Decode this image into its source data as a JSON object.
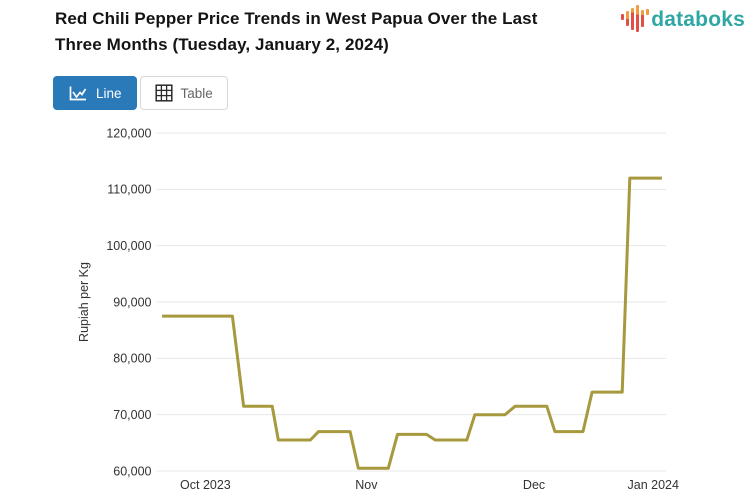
{
  "header": {
    "title": "Red Chili Pepper Price Trends in West Papua Over the Last Three Months (Tuesday, January 2, 2024)",
    "logo": {
      "text": "databoks",
      "text_color": "#2FA7A3",
      "bar_orange": "#F29B40",
      "bar_red": "#DF5147"
    }
  },
  "toolbar": {
    "line_button": {
      "label": "Line",
      "active": true
    },
    "table_button": {
      "label": "Table",
      "active": false
    },
    "active_bg": "#2A79B9",
    "inactive_text": "#666666"
  },
  "chart_data": {
    "type": "line",
    "title": "Red Chili Pepper Price Trends in West Papua Over the Last Three Months (Tuesday, January 2, 2024)",
    "xlabel": "",
    "ylabel": "Rupiah per Kg",
    "ylim": [
      60000,
      120000
    ],
    "grid": "horizontal-only",
    "legend": "none",
    "line_color": "#A6993E",
    "grid_color": "#E7E7E7",
    "y_ticks": [
      {
        "value": 60000,
        "label": "60,000"
      },
      {
        "value": 70000,
        "label": "70,000"
      },
      {
        "value": 80000,
        "label": "80,000"
      },
      {
        "value": 90000,
        "label": "90,000"
      },
      {
        "value": 100000,
        "label": "100,000"
      },
      {
        "value": 110000,
        "label": "110,000"
      },
      {
        "value": 120000,
        "label": "120,000"
      }
    ],
    "x_ticks": [
      {
        "label": "Oct 2023",
        "pct": 9.6
      },
      {
        "label": "Nov",
        "pct": 41.2
      },
      {
        "label": "Dec",
        "pct": 74.1
      },
      {
        "label": "Jan 2024",
        "pct": 97.5
      }
    ],
    "series": [
      {
        "name": "Red Chili Pepper Price (Rupiah per Kg)",
        "plateau_values": [
          87500,
          71500,
          65500,
          67000,
          60500,
          66500,
          65500,
          70000,
          71500,
          67000,
          74000,
          112000
        ],
        "points": [
          [
            1.1,
            87500
          ],
          [
            14.9,
            87500
          ],
          [
            17.1,
            71500
          ],
          [
            22.7,
            71500
          ],
          [
            23.9,
            65500
          ],
          [
            30.2,
            65500
          ],
          [
            31.8,
            67000
          ],
          [
            38.0,
            67000
          ],
          [
            39.6,
            60500
          ],
          [
            45.5,
            60500
          ],
          [
            47.3,
            66500
          ],
          [
            53.0,
            66500
          ],
          [
            54.7,
            65500
          ],
          [
            60.9,
            65500
          ],
          [
            62.5,
            70000
          ],
          [
            68.4,
            70000
          ],
          [
            70.4,
            71500
          ],
          [
            76.6,
            71500
          ],
          [
            78.2,
            67000
          ],
          [
            83.7,
            67000
          ],
          [
            85.5,
            74000
          ],
          [
            91.4,
            74000
          ],
          [
            92.9,
            112000
          ],
          [
            99.2,
            112000
          ]
        ]
      }
    ]
  }
}
